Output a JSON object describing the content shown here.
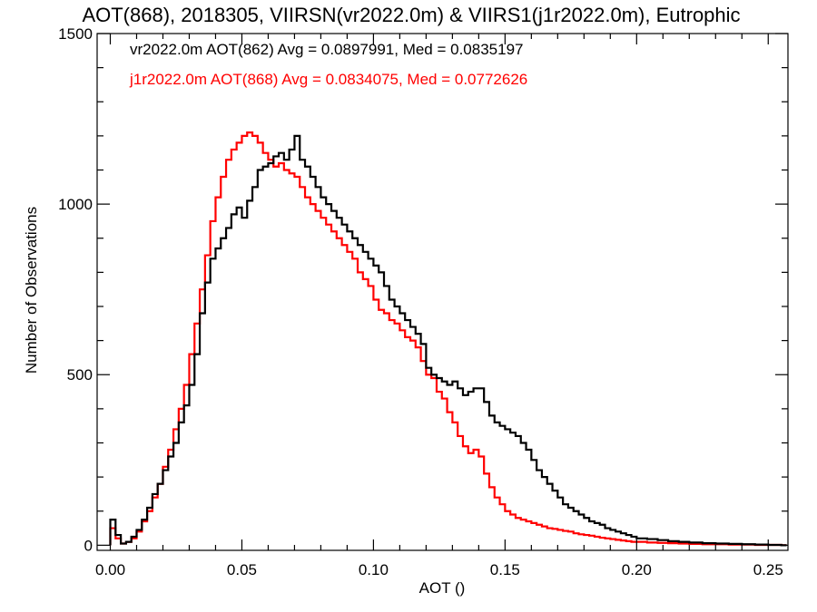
{
  "chart_data": {
    "type": "line",
    "step": true,
    "title": "AOT(868), 2018305, VIIRSN(vr2022.0m) & VIIRS1(j1r2022.0m), Eutrophic",
    "xlabel": "AOT ()",
    "ylabel": "Number of Observations",
    "xlim": [
      -0.005,
      0.2575
    ],
    "ylim": [
      -15,
      1500
    ],
    "xticks": [
      0.0,
      0.05,
      0.1,
      0.15,
      0.2,
      0.25
    ],
    "xtick_labels": [
      "0.00",
      "0.05",
      "0.10",
      "0.15",
      "0.20",
      "0.25"
    ],
    "yticks": [
      0,
      500,
      1000,
      1500
    ],
    "ytick_labels": [
      "0",
      "500",
      "1000",
      "1500"
    ],
    "annotations": [
      {
        "text": "vr2022.0m AOT(862) Avg = 0.0897991, Med = 0.0835197",
        "color": "#000000"
      },
      {
        "text": "j1r2022.0m AOT(868) Avg = 0.0834075, Med = 0.0772626",
        "color": "#ff0000"
      }
    ],
    "series": [
      {
        "color": "#000000",
        "x": [
          0.0,
          0.002,
          0.004,
          0.006,
          0.008,
          0.01,
          0.012,
          0.014,
          0.016,
          0.018,
          0.02,
          0.022,
          0.024,
          0.026,
          0.028,
          0.03,
          0.032,
          0.034,
          0.036,
          0.038,
          0.04,
          0.042,
          0.044,
          0.046,
          0.048,
          0.05,
          0.052,
          0.054,
          0.056,
          0.058,
          0.06,
          0.062,
          0.064,
          0.066,
          0.068,
          0.07,
          0.072,
          0.074,
          0.076,
          0.078,
          0.08,
          0.082,
          0.084,
          0.086,
          0.088,
          0.09,
          0.092,
          0.094,
          0.096,
          0.098,
          0.1,
          0.102,
          0.104,
          0.106,
          0.108,
          0.11,
          0.112,
          0.114,
          0.116,
          0.118,
          0.12,
          0.122,
          0.124,
          0.126,
          0.128,
          0.13,
          0.132,
          0.134,
          0.136,
          0.138,
          0.14,
          0.142,
          0.144,
          0.146,
          0.148,
          0.15,
          0.152,
          0.154,
          0.156,
          0.158,
          0.16,
          0.162,
          0.164,
          0.166,
          0.168,
          0.17,
          0.172,
          0.174,
          0.176,
          0.178,
          0.18,
          0.182,
          0.184,
          0.186,
          0.188,
          0.19,
          0.192,
          0.194,
          0.196,
          0.198,
          0.2,
          0.204,
          0.208,
          0.212,
          0.216,
          0.22,
          0.225,
          0.23,
          0.235,
          0.24,
          0.245,
          0.25,
          0.255
        ],
        "values": [
          75,
          30,
          5,
          10,
          25,
          45,
          75,
          110,
          150,
          180,
          220,
          260,
          300,
          360,
          410,
          470,
          560,
          680,
          770,
          840,
          870,
          900,
          930,
          970,
          990,
          960,
          1010,
          1050,
          1100,
          1110,
          1120,
          1140,
          1150,
          1130,
          1160,
          1200,
          1130,
          1110,
          1080,
          1050,
          1020,
          1000,
          980,
          960,
          940,
          920,
          900,
          880,
          860,
          840,
          820,
          800,
          760,
          720,
          700,
          680,
          660,
          640,
          620,
          590,
          520,
          500,
          490,
          480,
          470,
          480,
          460,
          440,
          450,
          460,
          460,
          420,
          380,
          360,
          350,
          340,
          330,
          320,
          300,
          280,
          250,
          220,
          200,
          180,
          160,
          140,
          120,
          110,
          100,
          90,
          80,
          70,
          65,
          60,
          50,
          45,
          40,
          35,
          30,
          25,
          20,
          18,
          15,
          12,
          10,
          8,
          6,
          5,
          4,
          3,
          2,
          1,
          0
        ]
      },
      {
        "color": "#ff0000",
        "x": [
          0.0,
          0.002,
          0.004,
          0.006,
          0.008,
          0.01,
          0.012,
          0.014,
          0.016,
          0.018,
          0.02,
          0.022,
          0.024,
          0.026,
          0.028,
          0.03,
          0.032,
          0.034,
          0.036,
          0.038,
          0.04,
          0.042,
          0.044,
          0.046,
          0.048,
          0.05,
          0.052,
          0.054,
          0.056,
          0.058,
          0.06,
          0.062,
          0.064,
          0.066,
          0.068,
          0.07,
          0.072,
          0.074,
          0.076,
          0.078,
          0.08,
          0.082,
          0.084,
          0.086,
          0.088,
          0.09,
          0.092,
          0.094,
          0.096,
          0.098,
          0.1,
          0.102,
          0.104,
          0.106,
          0.108,
          0.11,
          0.112,
          0.114,
          0.116,
          0.118,
          0.12,
          0.122,
          0.124,
          0.126,
          0.128,
          0.13,
          0.132,
          0.134,
          0.136,
          0.138,
          0.14,
          0.142,
          0.144,
          0.146,
          0.148,
          0.15,
          0.152,
          0.154,
          0.156,
          0.158,
          0.16,
          0.162,
          0.164,
          0.166,
          0.168,
          0.17,
          0.172,
          0.174,
          0.176,
          0.178,
          0.18,
          0.182,
          0.184,
          0.186,
          0.188,
          0.19,
          0.192,
          0.194,
          0.196,
          0.198,
          0.2,
          0.204,
          0.208,
          0.212,
          0.216,
          0.22,
          0.225,
          0.23,
          0.235,
          0.24,
          0.245,
          0.25,
          0.255
        ],
        "values": [
          50,
          20,
          5,
          10,
          20,
          40,
          70,
          100,
          140,
          180,
          230,
          280,
          340,
          400,
          470,
          560,
          650,
          750,
          850,
          950,
          1020,
          1080,
          1130,
          1160,
          1180,
          1200,
          1210,
          1200,
          1180,
          1150,
          1130,
          1110,
          1120,
          1100,
          1090,
          1080,
          1050,
          1020,
          1000,
          980,
          960,
          940,
          920,
          900,
          880,
          860,
          840,
          800,
          780,
          760,
          720,
          690,
          680,
          660,
          650,
          630,
          610,
          600,
          580,
          540,
          500,
          490,
          450,
          430,
          390,
          360,
          320,
          290,
          270,
          280,
          260,
          210,
          170,
          140,
          120,
          100,
          90,
          80,
          75,
          70,
          65,
          60,
          55,
          50,
          48,
          45,
          42,
          40,
          35,
          32,
          30,
          28,
          25,
          22,
          20,
          18,
          16,
          14,
          12,
          10,
          10,
          8,
          7,
          6,
          5,
          4,
          3,
          3,
          2,
          2,
          1,
          1,
          0
        ]
      }
    ]
  }
}
